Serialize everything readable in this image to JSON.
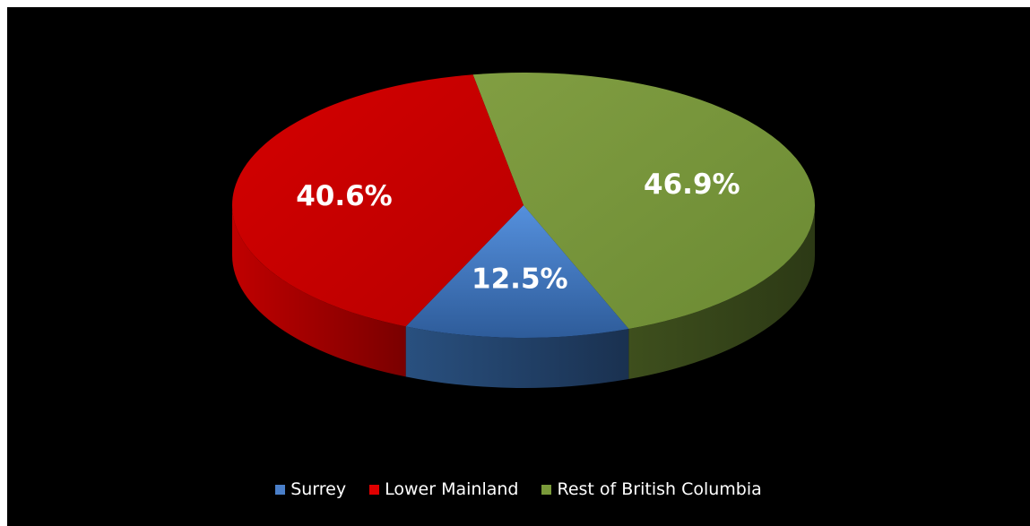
{
  "chart_data": {
    "type": "pie",
    "style": "3d",
    "slices": [
      {
        "name": "Surrey",
        "value": 12.5,
        "label": "12.5%",
        "color": "#4a7fc9"
      },
      {
        "name": "Lower Mainland",
        "value": 40.6,
        "label": "40.6%",
        "color": "#e00000"
      },
      {
        "name": "Rest of British Columbia",
        "value": 46.9,
        "label": "46.9%",
        "color": "#7a9a3a"
      }
    ],
    "legend_position": "bottom",
    "background": "#000000"
  }
}
